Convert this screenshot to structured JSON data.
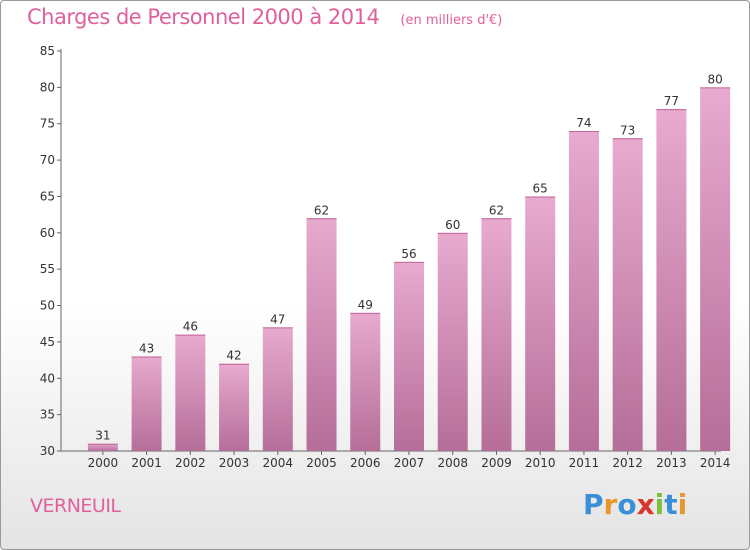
{
  "chart_data": {
    "type": "bar",
    "title": "Charges de Personnel 2000 à 2014",
    "subtitle": "(en milliers d'€)",
    "xlabel": "",
    "ylabel": "",
    "categories": [
      "2000",
      "2001",
      "2002",
      "2003",
      "2004",
      "2005",
      "2006",
      "2007",
      "2008",
      "2009",
      "2010",
      "2011",
      "2012",
      "2013",
      "2014"
    ],
    "values": [
      31,
      43,
      46,
      42,
      47,
      62,
      49,
      56,
      60,
      62,
      65,
      74,
      73,
      77,
      80
    ],
    "data_labels": [
      "31",
      "43",
      "46",
      "42",
      "47",
      "62",
      "49",
      "56",
      "60",
      "62",
      "65",
      "74",
      "73",
      "77",
      "80"
    ],
    "ylim": [
      30,
      85
    ],
    "yticks": [
      30,
      35,
      40,
      45,
      50,
      55,
      60,
      65,
      70,
      75,
      80,
      85
    ],
    "ytick_labels": [
      "30",
      "35",
      "40",
      "45",
      "50",
      "55",
      "60",
      "65",
      "70",
      "75",
      "80",
      "85"
    ],
    "grid": false,
    "legend": "none",
    "bar_color": "#d486b4"
  },
  "footer": {
    "place_name": "VERNEUIL",
    "logo_text": "Proxiti",
    "logo_colors": [
      "#3a8fd6",
      "#e8962e",
      "#3a8fd6",
      "#d9362f",
      "#7bbf3a",
      "#3a8fd6",
      "#e8962e"
    ]
  }
}
